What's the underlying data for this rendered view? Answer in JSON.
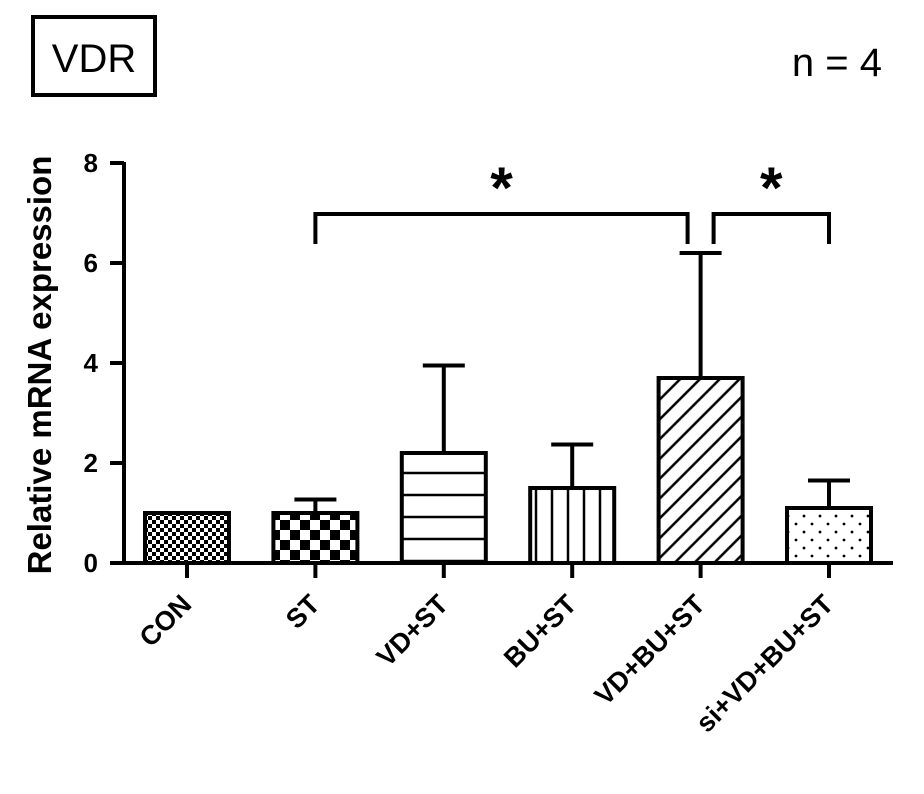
{
  "chart_data": {
    "type": "bar",
    "title": "VDR",
    "annotation": "n = 4",
    "xlabel": "",
    "ylabel": "Relative mRNA expression",
    "ylim": [
      0,
      8
    ],
    "yticks": [
      0,
      2,
      4,
      6,
      8
    ],
    "categories": [
      "CON",
      "ST",
      "VD+ST",
      "BU+ST",
      "VD+BU+ST",
      "si+VD+BU+ST"
    ],
    "values": [
      1.0,
      1.0,
      2.2,
      1.5,
      3.7,
      1.1
    ],
    "errors": [
      0.0,
      0.27,
      1.75,
      0.87,
      2.5,
      0.55
    ],
    "patterns": [
      "fine-checker",
      "checker",
      "horizontal-lines",
      "vertical-lines",
      "diagonal-lines",
      "dots"
    ],
    "significance": [
      {
        "from": "ST",
        "to": "VD+BU+ST",
        "label": "*"
      },
      {
        "from": "VD+BU+ST",
        "to": "si+VD+BU+ST",
        "label": "*"
      }
    ]
  }
}
